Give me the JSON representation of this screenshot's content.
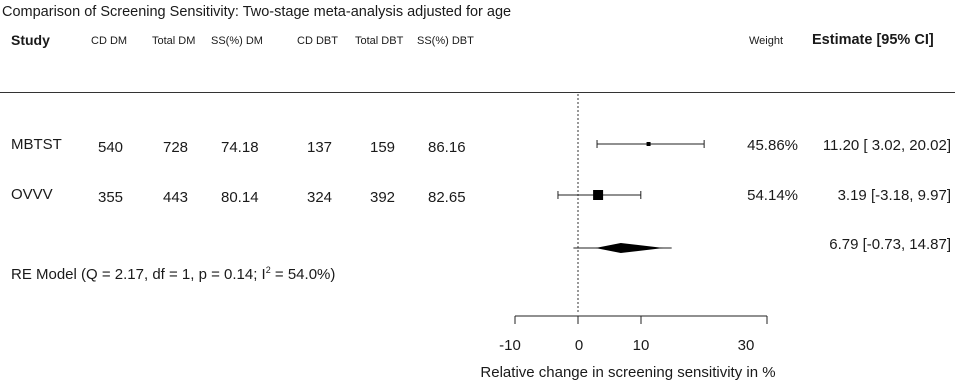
{
  "chart_data": {
    "type": "forest",
    "title": "Comparison of Screening Sensitivity: Two-stage meta-analysis adjusted for age",
    "columns": [
      "Study",
      "CD DM",
      "Total DM",
      "SS(%) DM",
      "CD DBT",
      "Total DBT",
      "SS(%) DBT"
    ],
    "weight_header": "Weight",
    "estimate_header": "Estimate [95% CI]",
    "studies": [
      {
        "name": "MBTST",
        "cells": [
          "540",
          "728",
          "74.18",
          "137",
          "159",
          "86.16"
        ],
        "weight_label": "45.86%",
        "estimate_label": "11.20 [ 3.02, 20.02]",
        "estimate": 11.2,
        "ci_low": 3.02,
        "ci_high": 20.02,
        "weight": 45.86
      },
      {
        "name": "OVVV",
        "cells": [
          "355",
          "443",
          "80.14",
          "324",
          "392",
          "82.65"
        ],
        "weight_label": "54.14%",
        "estimate_label": "3.19 [-3.18,  9.97]",
        "estimate": 3.19,
        "ci_low": -3.18,
        "ci_high": 9.97,
        "weight": 54.14
      }
    ],
    "summary": {
      "label_prefix": "RE Model (Q = 2.17, df = 1, p = 0.14; I",
      "label_sup": "2",
      "label_suffix": " = 54.0%)",
      "estimate_label": "6.79 [-0.73, 14.87]",
      "estimate": 6.79,
      "ci_low": -0.73,
      "ci_high": 14.87
    },
    "x_axis": {
      "ticks": [
        -10,
        0,
        10,
        30
      ],
      "tick_labels": [
        "-10",
        "0",
        "10",
        "30"
      ],
      "range": [
        -10,
        30
      ],
      "xlabel": "Relative change in screening sensitivity in %",
      "reference_line": 0
    }
  }
}
